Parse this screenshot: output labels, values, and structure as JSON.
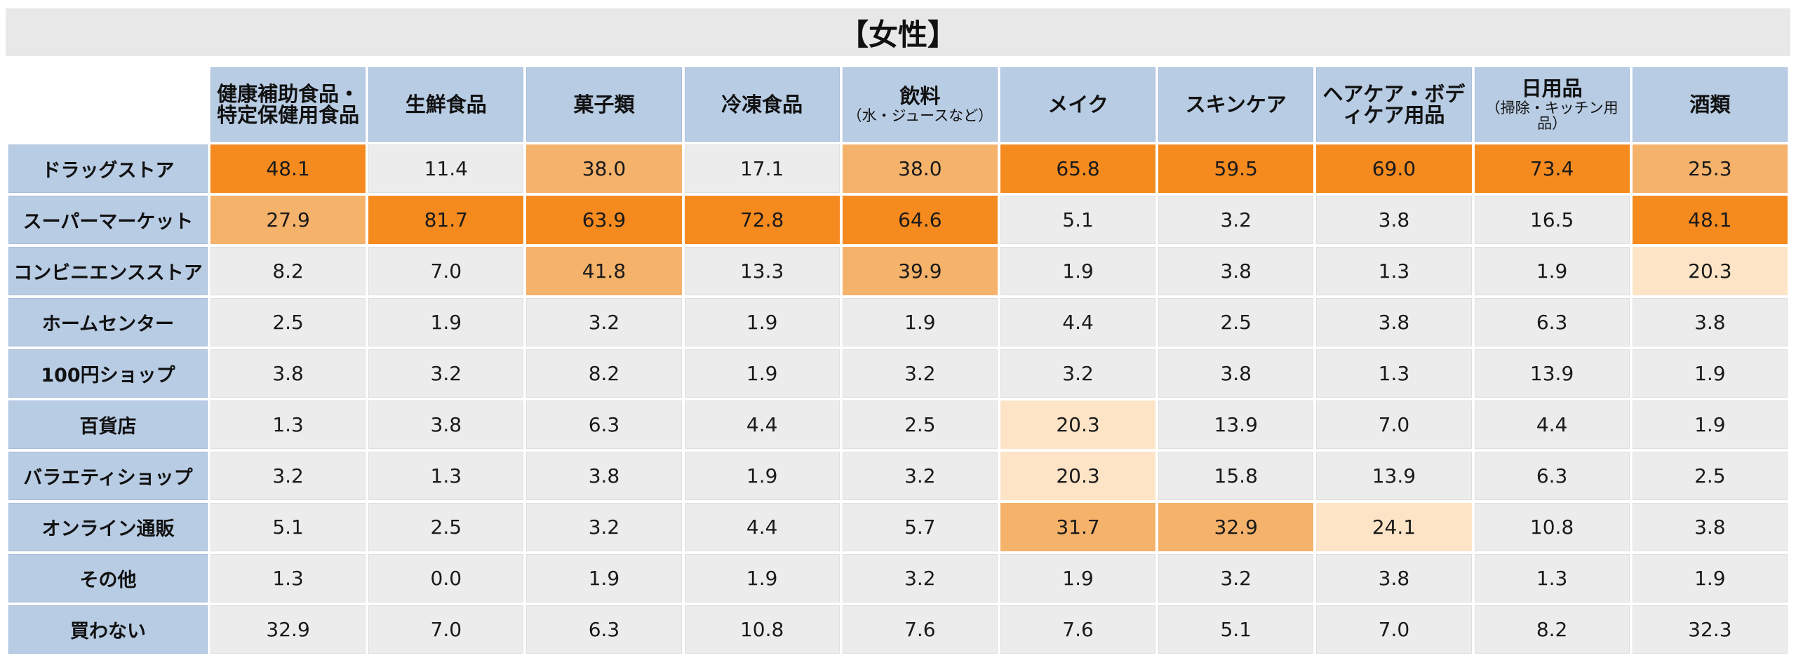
{
  "title": "【女性】",
  "colors": {
    "level3": "#f58a1f",
    "level2": "#f5b26b",
    "level1": "#fde4c6",
    "level0": "#ececec",
    "header": "#b8cce4"
  },
  "chart_data": {
    "type": "table",
    "title": "【女性】",
    "columns": [
      {
        "label": "健康補助食品・特定保健用食品",
        "sub": ""
      },
      {
        "label": "生鮮食品",
        "sub": ""
      },
      {
        "label": "菓子類",
        "sub": ""
      },
      {
        "label": "冷凍食品",
        "sub": ""
      },
      {
        "label": "飲料",
        "sub": "（水・ジュースなど）"
      },
      {
        "label": "メイク",
        "sub": ""
      },
      {
        "label": "スキンケア",
        "sub": ""
      },
      {
        "label": "ヘアケア・ボディケア用品",
        "sub": ""
      },
      {
        "label": "日用品",
        "sub": "（掃除・キッチン用品）"
      },
      {
        "label": "酒類",
        "sub": ""
      }
    ],
    "rows": [
      {
        "label": "ドラッグストア",
        "values": [
          48.1,
          11.4,
          38.0,
          17.1,
          38.0,
          65.8,
          59.5,
          69.0,
          73.4,
          25.3
        ],
        "levels": [
          3,
          0,
          2,
          0,
          2,
          3,
          3,
          3,
          3,
          2
        ]
      },
      {
        "label": "スーパーマーケット",
        "values": [
          27.9,
          81.7,
          63.9,
          72.8,
          64.6,
          5.1,
          3.2,
          3.8,
          16.5,
          48.1
        ],
        "levels": [
          2,
          3,
          3,
          3,
          3,
          0,
          0,
          0,
          0,
          3
        ]
      },
      {
        "label": "コンビニエンスストア",
        "values": [
          8.2,
          7.0,
          41.8,
          13.3,
          39.9,
          1.9,
          3.8,
          1.3,
          1.9,
          20.3
        ],
        "levels": [
          0,
          0,
          2,
          0,
          2,
          0,
          0,
          0,
          0,
          1
        ]
      },
      {
        "label": "ホームセンター",
        "values": [
          2.5,
          1.9,
          3.2,
          1.9,
          1.9,
          4.4,
          2.5,
          3.8,
          6.3,
          3.8
        ],
        "levels": [
          0,
          0,
          0,
          0,
          0,
          0,
          0,
          0,
          0,
          0
        ]
      },
      {
        "label": "100円ショップ",
        "values": [
          3.8,
          3.2,
          8.2,
          1.9,
          3.2,
          3.2,
          3.8,
          1.3,
          13.9,
          1.9
        ],
        "levels": [
          0,
          0,
          0,
          0,
          0,
          0,
          0,
          0,
          0,
          0
        ]
      },
      {
        "label": "百貨店",
        "values": [
          1.3,
          3.8,
          6.3,
          4.4,
          2.5,
          20.3,
          13.9,
          7.0,
          4.4,
          1.9
        ],
        "levels": [
          0,
          0,
          0,
          0,
          0,
          1,
          0,
          0,
          0,
          0
        ]
      },
      {
        "label": "バラエティショップ",
        "values": [
          3.2,
          1.3,
          3.8,
          1.9,
          3.2,
          20.3,
          15.8,
          13.9,
          6.3,
          2.5
        ],
        "levels": [
          0,
          0,
          0,
          0,
          0,
          1,
          0,
          0,
          0,
          0
        ]
      },
      {
        "label": "オンライン通販",
        "values": [
          5.1,
          2.5,
          3.2,
          4.4,
          5.7,
          31.7,
          32.9,
          24.1,
          10.8,
          3.8
        ],
        "levels": [
          0,
          0,
          0,
          0,
          0,
          2,
          2,
          1,
          0,
          0
        ]
      },
      {
        "label": "その他",
        "values": [
          1.3,
          0.0,
          1.9,
          1.9,
          3.2,
          1.9,
          3.2,
          3.8,
          1.3,
          1.9
        ],
        "levels": [
          0,
          0,
          0,
          0,
          0,
          0,
          0,
          0,
          0,
          0
        ]
      },
      {
        "label": "買わない",
        "values": [
          32.9,
          7.0,
          6.3,
          10.8,
          7.6,
          7.6,
          5.1,
          7.0,
          8.2,
          32.3
        ],
        "levels": [
          0,
          0,
          0,
          0,
          0,
          0,
          0,
          0,
          0,
          0
        ]
      }
    ]
  }
}
